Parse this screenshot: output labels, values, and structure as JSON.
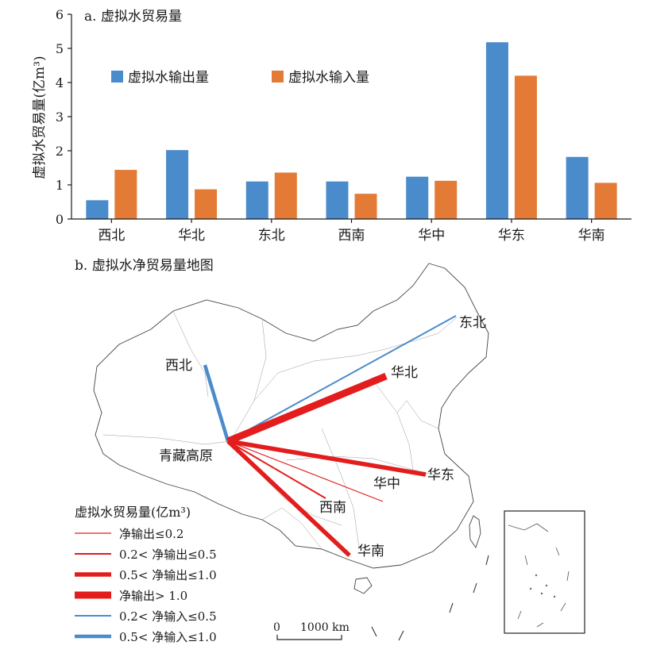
{
  "chart_data": [
    {
      "type": "bar",
      "title": "a. 虚拟水贸易量",
      "ylabel": "虚拟水贸易量(亿m³)",
      "xlabel": "",
      "ylim": [
        0,
        6
      ],
      "yticks": [
        0,
        1,
        2,
        3,
        4,
        5,
        6
      ],
      "legend_position": "top-left",
      "categories": [
        "西北",
        "华北",
        "东北",
        "西南",
        "华中",
        "华东",
        "华南"
      ],
      "series": [
        {
          "name": "虚拟水输出量",
          "color": "#4a8ccb",
          "values": [
            0.55,
            2.02,
            1.1,
            1.1,
            1.24,
            5.18,
            1.82
          ]
        },
        {
          "name": "虚拟水输入量",
          "color": "#e37b36",
          "values": [
            1.44,
            0.87,
            1.36,
            0.74,
            1.12,
            4.2,
            1.06
          ]
        }
      ]
    },
    {
      "type": "flow-map",
      "title": "b. 虚拟水净贸易量地图",
      "origin_label": "青藏高原",
      "regions": [
        "西北",
        "华北",
        "东北",
        "西南",
        "华中",
        "华东",
        "华南"
      ],
      "flows": [
        {
          "to": "西北",
          "kind": "净输入",
          "class": 5
        },
        {
          "to": "东北",
          "kind": "净输入",
          "class": 4
        },
        {
          "to": "华北",
          "kind": "净输出",
          "class": 3
        },
        {
          "to": "华东",
          "kind": "净输出",
          "class": 2
        },
        {
          "to": "华中",
          "kind": "净输出",
          "class": 0
        },
        {
          "to": "西南",
          "kind": "净输出",
          "class": 1
        },
        {
          "to": "华南",
          "kind": "净输出",
          "class": 2
        }
      ],
      "legend": {
        "title": "虚拟水贸易量(亿m³)",
        "items": [
          {
            "label": "净输出≤0.2",
            "color": "#e31d1d"
          },
          {
            "label": "0.2< 净输出≤0.5",
            "color": "#e31d1d"
          },
          {
            "label": "0.5< 净输出≤1.0",
            "color": "#e31d1d"
          },
          {
            "label": "净输出> 1.0",
            "color": "#e31d1d"
          },
          {
            "label": "0.2< 净输入≤0.5",
            "color": "#4a8ccb"
          },
          {
            "label": "0.5< 净输入≤1.0",
            "color": "#4a8ccb"
          }
        ]
      },
      "scale_bar": {
        "start": "0",
        "end": "1000 km"
      }
    }
  ]
}
